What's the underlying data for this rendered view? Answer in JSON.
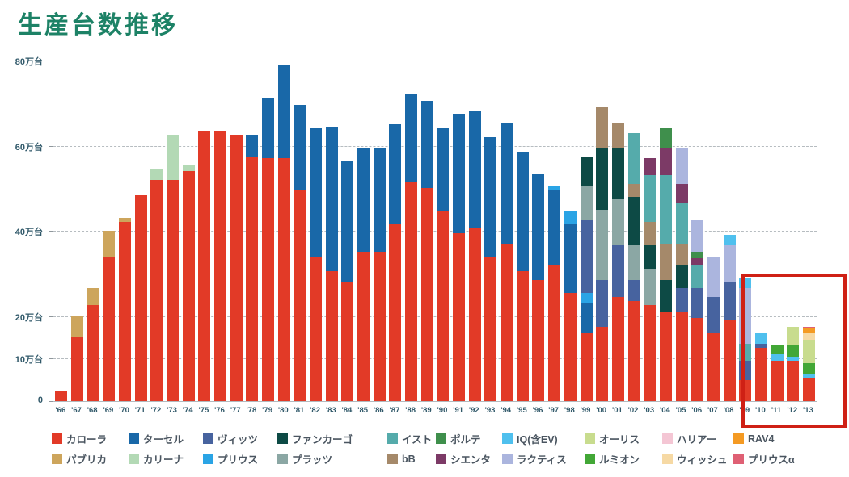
{
  "page": {
    "title": "生産台数推移"
  },
  "chart_data": {
    "type": "bar",
    "stacked": true,
    "title": "生産台数推移",
    "ylabel_unit": "万台",
    "ylim": [
      0,
      80
    ],
    "grid": "dashed horizontal gridlines",
    "legend_position": "bottom, 2 rows",
    "yticks": [
      {
        "v": 0,
        "label": "0"
      },
      {
        "v": 10,
        "label": "10万台"
      },
      {
        "v": 20,
        "label": "20万台"
      },
      {
        "v": 40,
        "label": "40万台"
      },
      {
        "v": 60,
        "label": "60万台"
      },
      {
        "v": 80,
        "label": "80万台"
      }
    ],
    "categories": [
      "'66",
      "'67",
      "'68",
      "'69",
      "'70",
      "'71",
      "'72",
      "'73",
      "'74",
      "'75",
      "'76",
      "'77",
      "'78",
      "'79",
      "'80",
      "'81",
      "'82",
      "'83",
      "'84",
      "'85",
      "'86",
      "'87",
      "'88",
      "'89",
      "'90",
      "'91",
      "'92",
      "'93",
      "'94",
      "'95",
      "'96",
      "'97",
      "'98",
      "'99",
      "'00",
      "'01",
      "'02",
      "'03",
      "'04",
      "'05",
      "'06",
      "'07",
      "'08",
      "'09",
      "'10",
      "'11",
      "'12",
      "'13"
    ],
    "colors": {
      "カローラ": "#e23a27",
      "ターセル": "#1968a8",
      "ヴィッツ": "#47639f",
      "ファンカーゴ": "#0d4a45",
      "イスト": "#55abab",
      "ポルテ": "#3f8f4c",
      "IQ(含EV)": "#4fc0ee",
      "オーリス": "#c8dc8e",
      "ハリアー": "#f4c6d4",
      "RAV4": "#f49a23",
      "パブリカ": "#cda55c",
      "カリーナ": "#b3d9b5",
      "プリウス": "#2aa4e5",
      "プラッツ": "#8ba7a4",
      "bB": "#a5896a",
      "シエンタ": "#7c3a66",
      "ラクティス": "#abb5de",
      "ルミオン": "#42a736",
      "ウィッシュ": "#f6d9a4",
      "プリウスα": "#df6074"
    },
    "legend_order": [
      "カローラ",
      "ターセル",
      "ヴィッツ",
      "ファンカーゴ",
      "イスト",
      "ポルテ",
      "IQ(含EV)",
      "オーリス",
      "ハリアー",
      "RAV4",
      "パブリカ",
      "カリーナ",
      "プリウス",
      "プラッツ",
      "bB",
      "シエンタ",
      "ラクティス",
      "ルミオン",
      "ウィッシュ",
      "プリウスα"
    ],
    "values_unit": "万台 (10,000 vehicles), estimated from gridlines",
    "bars": [
      {
        "year": "'66",
        "segments": [
          [
            "カローラ",
            2.5
          ]
        ]
      },
      {
        "year": "'67",
        "segments": [
          [
            "カローラ",
            15
          ],
          [
            "パブリカ",
            5
          ]
        ]
      },
      {
        "year": "'68",
        "segments": [
          [
            "カローラ",
            22.5
          ],
          [
            "パブリカ",
            4
          ]
        ]
      },
      {
        "year": "'69",
        "segments": [
          [
            "カローラ",
            34
          ],
          [
            "パブリカ",
            6
          ]
        ]
      },
      {
        "year": "'70",
        "segments": [
          [
            "カローラ",
            42
          ],
          [
            "パブリカ",
            1
          ]
        ]
      },
      {
        "year": "'71",
        "segments": [
          [
            "カローラ",
            48.5
          ]
        ]
      },
      {
        "year": "'72",
        "segments": [
          [
            "カローラ",
            52
          ],
          [
            "カリーナ",
            2.5
          ]
        ]
      },
      {
        "year": "'73",
        "segments": [
          [
            "カローラ",
            52
          ],
          [
            "カリーナ",
            10.5
          ]
        ]
      },
      {
        "year": "'74",
        "segments": [
          [
            "カローラ",
            54
          ],
          [
            "カリーナ",
            1.5
          ]
        ]
      },
      {
        "year": "'75",
        "segments": [
          [
            "カローラ",
            63.5
          ]
        ]
      },
      {
        "year": "'76",
        "segments": [
          [
            "カローラ",
            63.5
          ]
        ]
      },
      {
        "year": "'77",
        "segments": [
          [
            "カローラ",
            62.5
          ]
        ]
      },
      {
        "year": "'78",
        "segments": [
          [
            "カローラ",
            57.5
          ],
          [
            "ターセル",
            5
          ]
        ]
      },
      {
        "year": "'79",
        "segments": [
          [
            "カローラ",
            57
          ],
          [
            "ターセル",
            14
          ]
        ]
      },
      {
        "year": "'80",
        "segments": [
          [
            "カローラ",
            57
          ],
          [
            "ターセル",
            22
          ]
        ]
      },
      {
        "year": "'81",
        "segments": [
          [
            "カローラ",
            49.5
          ],
          [
            "ターセル",
            20
          ]
        ]
      },
      {
        "year": "'82",
        "segments": [
          [
            "カローラ",
            34
          ],
          [
            "ターセル",
            30
          ]
        ]
      },
      {
        "year": "'83",
        "segments": [
          [
            "カローラ",
            30.5
          ],
          [
            "ターセル",
            34
          ]
        ]
      },
      {
        "year": "'84",
        "segments": [
          [
            "カローラ",
            28
          ],
          [
            "ターセル",
            28.5
          ]
        ]
      },
      {
        "year": "'85",
        "segments": [
          [
            "カローラ",
            35
          ],
          [
            "ターセル",
            24.5
          ]
        ]
      },
      {
        "year": "'86",
        "segments": [
          [
            "カローラ",
            35
          ],
          [
            "ターセル",
            24.5
          ]
        ]
      },
      {
        "year": "'87",
        "segments": [
          [
            "カローラ",
            41.5
          ],
          [
            "ターセル",
            23.5
          ]
        ]
      },
      {
        "year": "'88",
        "segments": [
          [
            "カローラ",
            51.5
          ],
          [
            "ターセル",
            20.5
          ]
        ]
      },
      {
        "year": "'89",
        "segments": [
          [
            "カローラ",
            50
          ],
          [
            "ターセル",
            20.5
          ]
        ]
      },
      {
        "year": "'90",
        "segments": [
          [
            "カローラ",
            44.5
          ],
          [
            "ターセル",
            19.5
          ]
        ]
      },
      {
        "year": "'91",
        "segments": [
          [
            "カローラ",
            39.5
          ],
          [
            "ターセル",
            28
          ]
        ]
      },
      {
        "year": "'92",
        "segments": [
          [
            "カローラ",
            40.5
          ],
          [
            "ターセル",
            27.5
          ]
        ]
      },
      {
        "year": "'93",
        "segments": [
          [
            "カローラ",
            34
          ],
          [
            "ターセル",
            28
          ]
        ]
      },
      {
        "year": "'94",
        "segments": [
          [
            "カローラ",
            37
          ],
          [
            "ターセル",
            28.5
          ]
        ]
      },
      {
        "year": "'95",
        "segments": [
          [
            "カローラ",
            30.5
          ],
          [
            "ターセル",
            28
          ]
        ]
      },
      {
        "year": "'96",
        "segments": [
          [
            "カローラ",
            28.5
          ],
          [
            "ターセル",
            25
          ]
        ]
      },
      {
        "year": "'97",
        "segments": [
          [
            "カローラ",
            32
          ],
          [
            "ターセル",
            17.5
          ],
          [
            "プリウス",
            1
          ]
        ]
      },
      {
        "year": "'98",
        "segments": [
          [
            "カローラ",
            25.5
          ],
          [
            "ターセル",
            16
          ],
          [
            "プリウス",
            3
          ]
        ]
      },
      {
        "year": "'99",
        "segments": [
          [
            "カローラ",
            16
          ],
          [
            "ターセル",
            7
          ],
          [
            "プリウス",
            2.5
          ],
          [
            "ヴィッツ",
            17
          ],
          [
            "プラッツ",
            8
          ],
          [
            "ファンカーゴ",
            7
          ]
        ]
      },
      {
        "year": "'00",
        "segments": [
          [
            "カローラ",
            17.5
          ],
          [
            "ヴィッツ",
            11
          ],
          [
            "プラッツ",
            16.5
          ],
          [
            "ファンカーゴ",
            14.5
          ],
          [
            "bB",
            9.5
          ]
        ]
      },
      {
        "year": "'01",
        "segments": [
          [
            "カローラ",
            24.5
          ],
          [
            "ヴィッツ",
            12
          ],
          [
            "プラッツ",
            11
          ],
          [
            "ファンカーゴ",
            12
          ],
          [
            "bB",
            6
          ]
        ]
      },
      {
        "year": "'02",
        "segments": [
          [
            "カローラ",
            23.5
          ],
          [
            "ヴィッツ",
            5
          ],
          [
            "プラッツ",
            8
          ],
          [
            "ファンカーゴ",
            11.5
          ],
          [
            "bB",
            3
          ],
          [
            "イスト",
            12
          ]
        ]
      },
      {
        "year": "'03",
        "segments": [
          [
            "カローラ",
            22.5
          ],
          [
            "プラッツ",
            8.5
          ],
          [
            "ファンカーゴ",
            5.5
          ],
          [
            "bB",
            5.5
          ],
          [
            "イスト",
            11
          ],
          [
            "シエンタ",
            4
          ]
        ]
      },
      {
        "year": "'04",
        "segments": [
          [
            "カローラ",
            21
          ],
          [
            "ファンカーゴ",
            7.5
          ],
          [
            "bB",
            8.5
          ],
          [
            "イスト",
            16
          ],
          [
            "シエンタ",
            6.5
          ],
          [
            "ポルテ",
            4.5
          ]
        ]
      },
      {
        "year": "'05",
        "segments": [
          [
            "カローラ",
            21
          ],
          [
            "ヴィッツ",
            5.5
          ],
          [
            "ファンカーゴ",
            5.5
          ],
          [
            "bB",
            5
          ],
          [
            "イスト",
            9.5
          ],
          [
            "シエンタ",
            4.5
          ],
          [
            "ラクティス",
            8.5
          ]
        ]
      },
      {
        "year": "'06",
        "segments": [
          [
            "カローラ",
            19.5
          ],
          [
            "ヴィッツ",
            7
          ],
          [
            "イスト",
            5.5
          ],
          [
            "シエンタ",
            1.5
          ],
          [
            "ポルテ",
            1.5
          ],
          [
            "ラクティス",
            7.5
          ]
        ]
      },
      {
        "year": "'07",
        "segments": [
          [
            "カローラ",
            16
          ],
          [
            "ヴィッツ",
            8.5
          ],
          [
            "ラクティス",
            9.5
          ]
        ]
      },
      {
        "year": "'08",
        "segments": [
          [
            "カローラ",
            19
          ],
          [
            "ヴィッツ",
            9
          ],
          [
            "ラクティス",
            8.5
          ],
          [
            "IQ(含EV)",
            2.5
          ]
        ]
      },
      {
        "year": "'09",
        "segments": [
          [
            "カローラ",
            5
          ],
          [
            "ヴィッツ",
            4.5
          ],
          [
            "イスト",
            4
          ],
          [
            "ラクティス",
            13
          ],
          [
            "IQ(含EV)",
            2.5
          ]
        ]
      },
      {
        "year": "'10",
        "segments": [
          [
            "カローラ",
            12.5
          ],
          [
            "ヴィッツ",
            1
          ],
          [
            "IQ(含EV)",
            2.5
          ]
        ]
      },
      {
        "year": "'11",
        "segments": [
          [
            "カローラ",
            9.5
          ],
          [
            "IQ(含EV)",
            1.5
          ],
          [
            "ルミオン",
            2
          ]
        ]
      },
      {
        "year": "'12",
        "segments": [
          [
            "カローラ",
            9.5
          ],
          [
            "IQ(含EV)",
            1
          ],
          [
            "ルミオン",
            2.5
          ],
          [
            "オーリス",
            4.5
          ]
        ]
      },
      {
        "year": "'13",
        "segments": [
          [
            "カローラ",
            5.5
          ],
          [
            "IQ(含EV)",
            1
          ],
          [
            "ルミオン",
            2.5
          ],
          [
            "オーリス",
            5.5
          ],
          [
            "ウィッシュ",
            1.5
          ],
          [
            "RAV4",
            1
          ],
          [
            "プリウスα",
            0.5
          ]
        ]
      }
    ],
    "highlight": {
      "years": [
        "'10",
        "'11",
        "'12",
        "'13"
      ],
      "box_color": "#cf2015"
    }
  }
}
